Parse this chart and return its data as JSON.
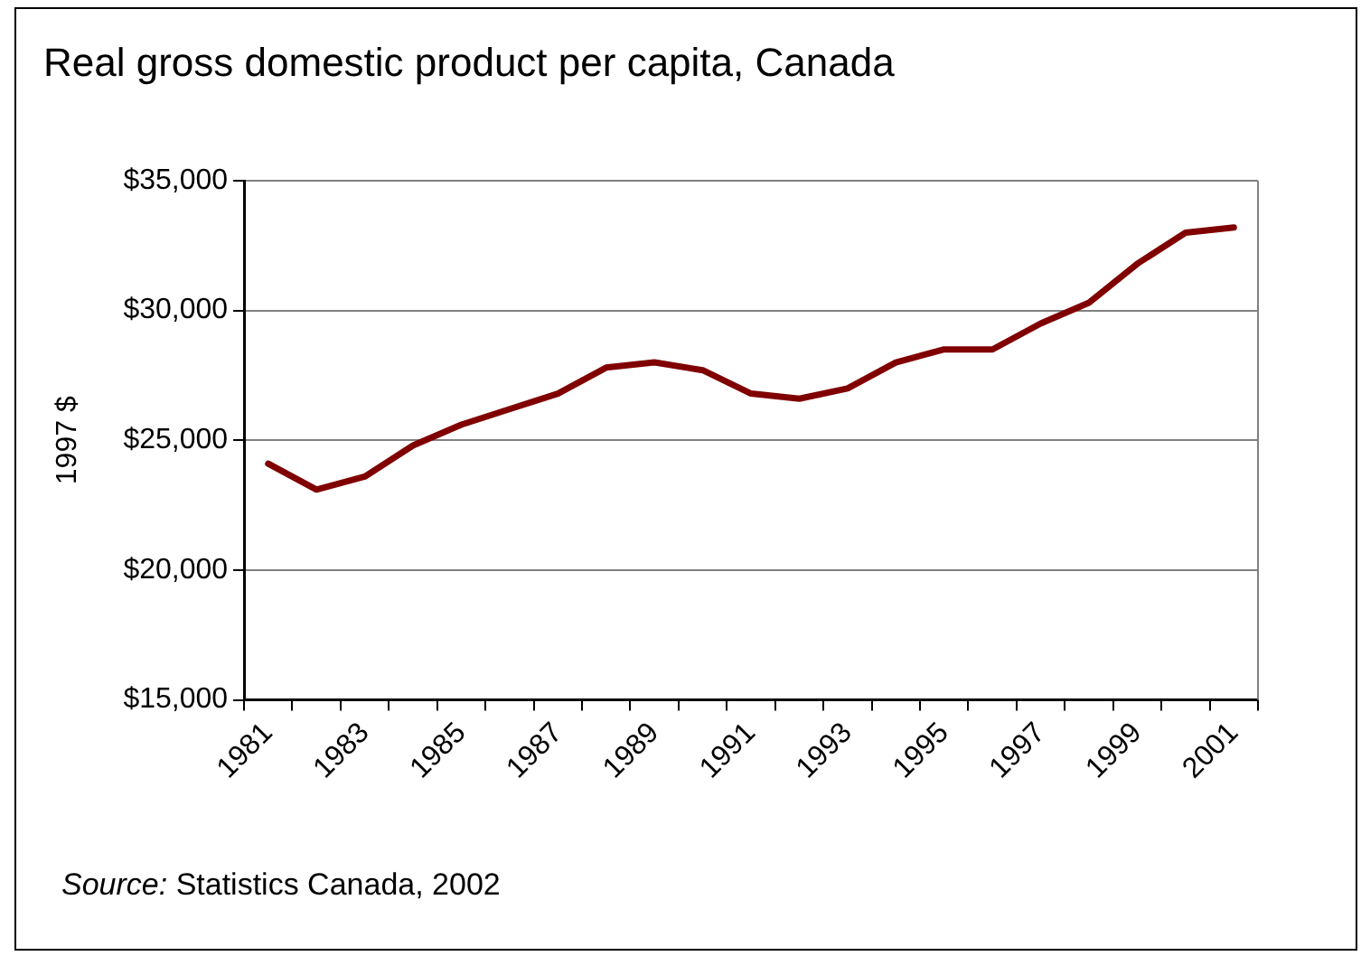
{
  "chart_data": {
    "type": "line",
    "title": "Real gross domestic product per capita, Canada",
    "ylabel": "1997 $",
    "categories": [
      "1981",
      null,
      "1983",
      null,
      "1985",
      null,
      "1987",
      null,
      "1989",
      null,
      "1991",
      null,
      "1993",
      null,
      "1995",
      null,
      "1997",
      null,
      "1999",
      null,
      "2001"
    ],
    "series": [
      {
        "color": "#800000",
        "values": [
          24100,
          23100,
          23600,
          24800,
          25600,
          26200,
          26800,
          27800,
          28000,
          27700,
          26800,
          26600,
          27000,
          28000,
          28500,
          28500,
          29500,
          30300,
          31800,
          33000,
          33200
        ]
      }
    ],
    "ylim": [
      15000,
      35000
    ],
    "yticks": [
      {
        "value": 15000,
        "label": "$15,000"
      },
      {
        "value": 20000,
        "label": "$20,000"
      },
      {
        "value": 25000,
        "label": "$25,000"
      },
      {
        "value": 30000,
        "label": "$30,000"
      },
      {
        "value": 35000,
        "label": "$35,000"
      }
    ],
    "grid": "y",
    "legend": false,
    "marker": "none",
    "line_style": "solid",
    "annotations": [
      "Source: Statistics Canada, 2002"
    ]
  }
}
